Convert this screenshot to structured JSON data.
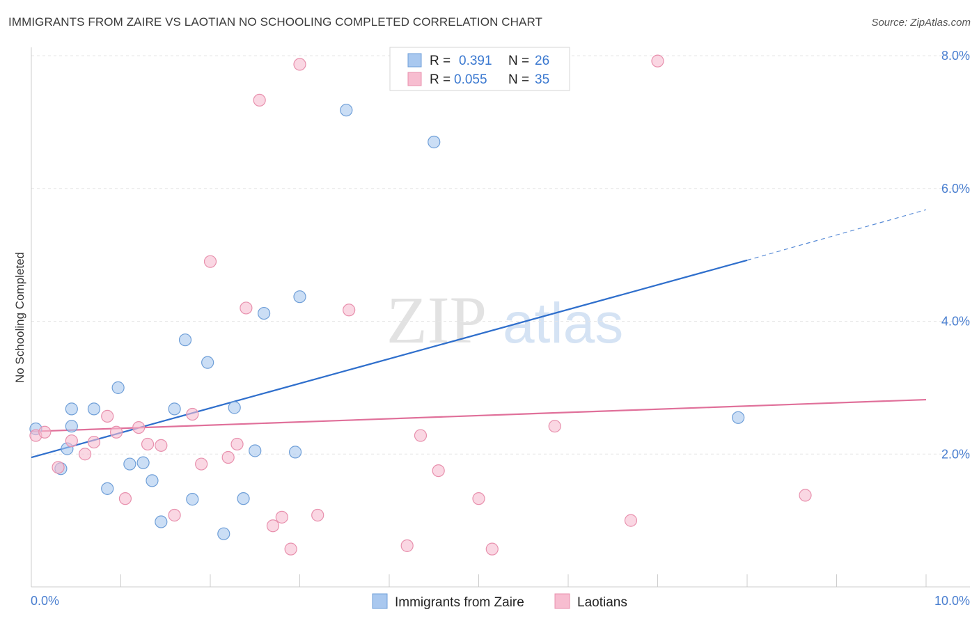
{
  "title": "IMMIGRANTS FROM ZAIRE VS LAOTIAN NO SCHOOLING COMPLETED CORRELATION CHART",
  "source": "Source: ZipAtlas.com",
  "watermark": {
    "zip": "ZIP",
    "atlas": "atlas"
  },
  "chart_data": {
    "type": "scatter",
    "title": "IMMIGRANTS FROM ZAIRE VS LAOTIAN NO SCHOOLING COMPLETED CORRELATION CHART",
    "xlabel": "",
    "ylabel": "No Schooling Completed",
    "xlim": [
      0,
      10
    ],
    "ylim": [
      0,
      8.3
    ],
    "x_tick_labels": {
      "left": "0.0%",
      "right": "10.0%"
    },
    "y_ticks": [
      {
        "value": 2,
        "label": "2.0%"
      },
      {
        "value": 4,
        "label": "4.0%"
      },
      {
        "value": 6,
        "label": "6.0%"
      },
      {
        "value": 8,
        "label": "8.0%"
      }
    ],
    "grid": true,
    "legend": {
      "position": "top-center",
      "rows": [
        {
          "r_label": "R =",
          "r_value": "0.391",
          "n_label": "N =",
          "n_value": "26"
        },
        {
          "r_label": "R =",
          "r_value": "0.055",
          "n_label": "N =",
          "n_value": "35"
        }
      ]
    },
    "series": [
      {
        "name": "Immigrants from Zaire",
        "color": "#a9c8ef",
        "edge": "#6f9fd8",
        "trend_color": "#2f6fcc",
        "trend": {
          "x0": 0,
          "y0": 1.95,
          "x1": 8,
          "y1": 4.92,
          "dash_to_x": 10,
          "dash_to_y": 5.68
        },
        "points": [
          [
            0.05,
            2.38
          ],
          [
            0.4,
            2.08
          ],
          [
            0.33,
            1.78
          ],
          [
            0.45,
            2.68
          ],
          [
            0.7,
            2.68
          ],
          [
            0.45,
            2.42
          ],
          [
            0.97,
            3.0
          ],
          [
            0.85,
            1.48
          ],
          [
            1.1,
            1.85
          ],
          [
            1.25,
            1.87
          ],
          [
            1.35,
            1.6
          ],
          [
            1.45,
            0.98
          ],
          [
            1.6,
            2.68
          ],
          [
            1.72,
            3.72
          ],
          [
            1.8,
            1.32
          ],
          [
            1.97,
            3.38
          ],
          [
            2.15,
            0.8
          ],
          [
            2.27,
            2.7
          ],
          [
            2.37,
            1.33
          ],
          [
            2.5,
            2.05
          ],
          [
            2.6,
            4.12
          ],
          [
            2.95,
            2.03
          ],
          [
            3.0,
            4.37
          ],
          [
            3.52,
            7.18
          ],
          [
            4.5,
            6.7
          ],
          [
            7.9,
            2.55
          ]
        ]
      },
      {
        "name": "Laotians",
        "color": "#f7bdd0",
        "edge": "#e890ad",
        "trend_color": "#e0709a",
        "trend": {
          "x0": 0,
          "y0": 2.34,
          "x1": 10,
          "y1": 2.82
        },
        "points": [
          [
            0.05,
            2.28
          ],
          [
            0.15,
            2.33
          ],
          [
            0.3,
            1.8
          ],
          [
            0.45,
            2.2
          ],
          [
            0.6,
            2.0
          ],
          [
            0.7,
            2.18
          ],
          [
            0.85,
            2.57
          ],
          [
            0.95,
            2.33
          ],
          [
            1.05,
            1.33
          ],
          [
            1.2,
            2.4
          ],
          [
            1.3,
            2.15
          ],
          [
            1.45,
            2.13
          ],
          [
            1.6,
            1.08
          ],
          [
            1.8,
            2.6
          ],
          [
            1.9,
            1.85
          ],
          [
            2.0,
            4.9
          ],
          [
            2.2,
            1.95
          ],
          [
            2.3,
            2.15
          ],
          [
            2.4,
            4.2
          ],
          [
            2.55,
            7.33
          ],
          [
            2.7,
            0.92
          ],
          [
            2.8,
            1.05
          ],
          [
            2.9,
            0.57
          ],
          [
            3.0,
            7.87
          ],
          [
            3.2,
            1.08
          ],
          [
            3.55,
            4.17
          ],
          [
            4.2,
            0.62
          ],
          [
            4.35,
            2.28
          ],
          [
            4.55,
            1.75
          ],
          [
            5.0,
            1.33
          ],
          [
            5.15,
            0.57
          ],
          [
            5.85,
            2.42
          ],
          [
            6.7,
            1.0
          ],
          [
            7.0,
            7.92
          ],
          [
            8.65,
            1.38
          ]
        ]
      }
    ]
  }
}
